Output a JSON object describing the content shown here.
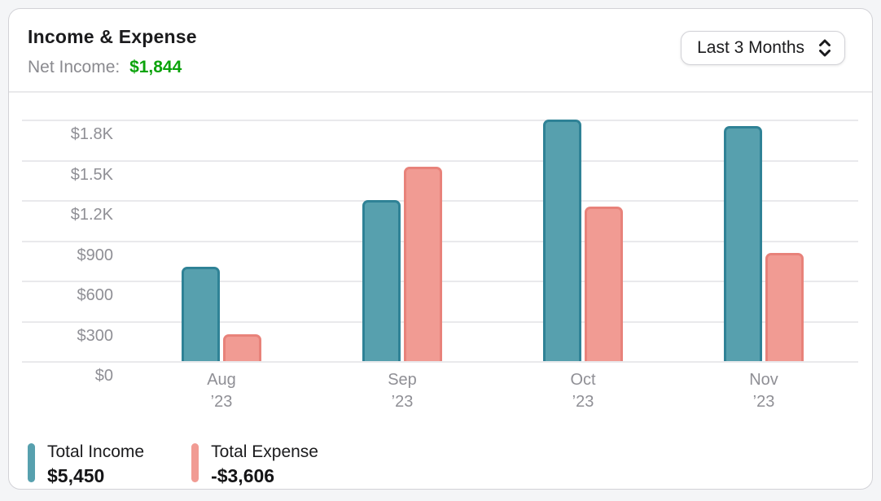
{
  "header": {
    "title": "Income & Expense",
    "net_income_label": "Net Income:",
    "net_income_value": "$1,844"
  },
  "controls": {
    "period_selector": {
      "value": "Last 3 Months",
      "icon": "chevron-up-down-icon"
    }
  },
  "colors": {
    "income_fill": "#57a0ae",
    "income_border": "#2f8296",
    "expense_fill": "#f19b93",
    "expense_border": "#e8827a",
    "net_income_green": "#0ba30b",
    "card_background": "#ffffff",
    "page_background": "#f4f5f7",
    "gridline": "#e9e9ec",
    "axis_text": "#8f8f95"
  },
  "chart_data": {
    "type": "bar",
    "title": "Income & Expense",
    "categories": [
      "Aug",
      "Sep",
      "Oct",
      "Nov"
    ],
    "category_sublabel": "’23",
    "series": [
      {
        "name": "Total Income",
        "total": "$5,450",
        "values": [
          700,
          1200,
          1800,
          1750
        ],
        "color": "#57a0ae",
        "border_color": "#2f8296"
      },
      {
        "name": "Total Expense",
        "total": "-$3,606",
        "values": [
          200,
          1450,
          1150,
          806
        ],
        "color": "#f19b93",
        "border_color": "#e8827a"
      }
    ],
    "y_ticks": [
      {
        "label": "$1.8K",
        "value": 1800
      },
      {
        "label": "$1.5K",
        "value": 1500
      },
      {
        "label": "$1.2K",
        "value": 1200
      },
      {
        "label": "$900",
        "value": 900
      },
      {
        "label": "$600",
        "value": 600
      },
      {
        "label": "$300",
        "value": 300
      },
      {
        "label": "$0",
        "value": 0
      }
    ],
    "ylim": [
      0,
      2000
    ],
    "grid": true,
    "legend_position": "bottom"
  }
}
